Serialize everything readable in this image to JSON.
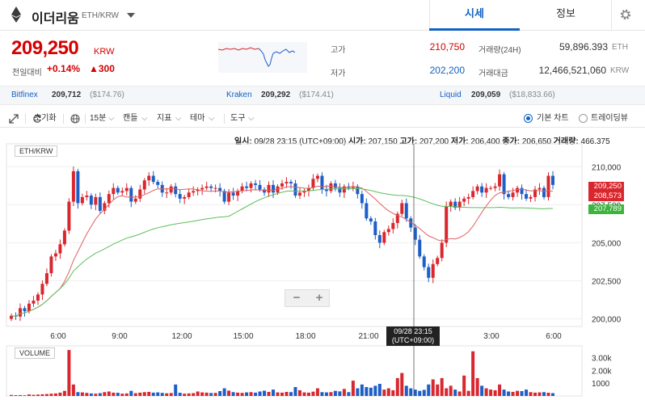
{
  "header": {
    "coin_name": "이더리움",
    "pair": "ETH/KRW",
    "tabs": [
      {
        "label": "시세"
      },
      {
        "label": "정보"
      }
    ]
  },
  "summary": {
    "price": "209,250",
    "unit": "KRW",
    "prev_label": "전일대비",
    "change_pct": "+0.14%",
    "change_amt": "▲300",
    "high_label": "고가",
    "high": "210,750",
    "low_label": "저가",
    "low": "202,200",
    "volume_label": "거래량(24H)",
    "volume": "59,896.393",
    "volume_unit": "ETH",
    "amount_label": "거래대금",
    "amount": "12,466,521,060",
    "amount_unit": "KRW"
  },
  "exchanges": [
    {
      "name": "Bitfinex",
      "price": "209,712",
      "usd": "($174.76)"
    },
    {
      "name": "Kraken",
      "price": "209,292",
      "usd": "($174.41)"
    },
    {
      "name": "Liquid",
      "price": "209,059",
      "usd": "($18,833.66)"
    }
  ],
  "toolbar": {
    "reset": "초기화",
    "interval": "15분",
    "candle": "캔들",
    "indicator": "지표",
    "theme": "테마",
    "tools": "도구",
    "basic_chart": "기본 차트",
    "tradingview": "트레이딩뷰"
  },
  "chart_data": {
    "type": "candlestick",
    "pair_label": "ETH/KRW",
    "ohlc_header": {
      "time_label": "일시:",
      "time": "09/28 23:15 (UTC+09:00)",
      "open_label": "시가:",
      "open": "207,150",
      "high_label": "고가:",
      "high": "207,200",
      "low_label": "저가:",
      "low": "206,400",
      "close_label": "종가:",
      "close": "206,650",
      "vol_label": "거래량:",
      "volume": "466.375"
    },
    "x_ticks": [
      "6:00",
      "9:00",
      "12:00",
      "15:00",
      "18:00",
      "21:00",
      "3:00",
      "6:00"
    ],
    "y_ticks": [
      "210,000",
      "207,500",
      "205,000",
      "202,500",
      "200,000"
    ],
    "ylim": [
      199500,
      211500
    ],
    "price_tags": [
      {
        "value": "209,250",
        "color": "#d9272e"
      },
      {
        "value": "208,573",
        "color": "#d9272e"
      },
      {
        "value": "207,789",
        "color": "#3cb53c"
      }
    ],
    "crosshair_label": [
      "09/28 23:15",
      "(UTC+09:00)"
    ],
    "volume_label": "VOLUME",
    "volume_ticks": [
      "3.00k",
      "2.00k",
      "1000"
    ],
    "up_color": "#d9272e",
    "down_color": "#1d5fc7",
    "closes": [
      200200,
      200150,
      200700,
      200500,
      201000,
      201200,
      201600,
      202300,
      203000,
      204100,
      204300,
      204900,
      205800,
      207700,
      209700,
      207600,
      208000,
      208100,
      207500,
      208000,
      207100,
      207600,
      208200,
      208600,
      208300,
      208400,
      208600,
      207700,
      207900,
      208500,
      209100,
      209400,
      209000,
      208800,
      208300,
      208300,
      208700,
      208200,
      207900,
      208000,
      208300,
      208400,
      208500,
      208600,
      208700,
      208600,
      208600,
      208400,
      207700,
      208300,
      208100,
      208400,
      208700,
      208600,
      208900,
      208800,
      208500,
      208300,
      208800,
      208300,
      208700,
      208900,
      209000,
      208900,
      208100,
      208300,
      208400,
      208600,
      209200,
      209400,
      208500,
      208400,
      208900,
      208600,
      208300,
      208700,
      208600,
      208700,
      208200,
      207600,
      206600,
      206400,
      205500,
      205000,
      205700,
      205900,
      206300,
      206900,
      207600,
      206600,
      206000,
      205200,
      204100,
      203400,
      202700,
      203600,
      204000,
      205000,
      207400,
      207700,
      207300,
      207700,
      207900,
      208000,
      208400,
      208700,
      208300,
      208600,
      208600,
      208700,
      209500,
      208200,
      208000,
      208300,
      208600,
      208200,
      207900,
      208000,
      208500,
      208600,
      208000,
      209400,
      208800
    ],
    "volumes": [
      80,
      60,
      70,
      50,
      120,
      90,
      110,
      130,
      150,
      180,
      200,
      260,
      400,
      3600,
      900,
      300,
      280,
      240,
      200,
      180,
      220,
      300,
      350,
      260,
      250,
      180,
      200,
      400,
      220,
      260,
      300,
      320,
      260,
      280,
      240,
      210,
      230,
      900,
      250,
      180,
      200,
      220,
      350,
      280,
      260,
      230,
      240,
      380,
      600,
      420,
      300,
      260,
      240,
      280,
      300,
      260,
      350,
      410,
      320,
      500,
      280,
      260,
      320,
      300,
      700,
      450,
      280,
      260,
      340,
      600,
      300,
      280,
      300,
      400,
      360,
      550,
      300,
      1200,
      600,
      900,
      700,
      650,
      800,
      950,
      500,
      600,
      450,
      1400,
      1800,
      800,
      600,
      500,
      400,
      480,
      900,
      1300,
      900,
      1400,
      600,
      800,
      500,
      350,
      1600,
      400,
      3500,
      1400,
      800,
      600,
      500,
      450,
      900,
      500,
      350,
      320,
      400,
      380,
      500,
      300,
      260,
      280,
      300,
      250,
      220
    ]
  }
}
